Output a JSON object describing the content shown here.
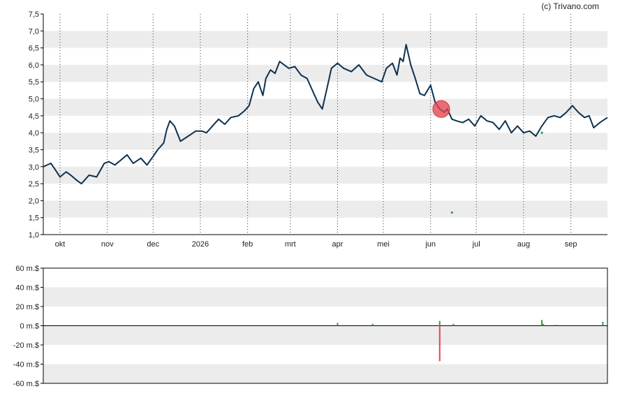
{
  "credit": "(c) Trivano.com",
  "chart_data": [
    {
      "type": "line",
      "title": "",
      "xlabel": "",
      "ylabel": "",
      "ylim": [
        1.0,
        7.5
      ],
      "ytick_labels": [
        "1,0",
        "1,5",
        "2,0",
        "2,5",
        "3,0",
        "3,5",
        "4,0",
        "4,5",
        "5,0",
        "5,5",
        "6,0",
        "6,5",
        "7,0",
        "7,5"
      ],
      "xtick_labels": [
        "okt",
        "nov",
        "dec",
        "2026",
        "feb",
        "mrt",
        "apr",
        "mei",
        "jun",
        "jul",
        "aug",
        "sep"
      ],
      "grid": true,
      "x_range": [
        "2025-09-20",
        "2026-09-25"
      ],
      "xticks": [
        "2025-10-01",
        "2025-11-01",
        "2025-12-01",
        "2026-01-01",
        "2026-02-01",
        "2026-03-01",
        "2026-04-01",
        "2026-05-01",
        "2026-06-01",
        "2026-07-01",
        "2026-08-01",
        "2026-09-01"
      ],
      "series": [
        {
          "color": "#0d3150",
          "x": [
            "2025-09-20",
            "2025-09-25",
            "2025-09-28",
            "2025-10-01",
            "2025-10-05",
            "2025-10-08",
            "2025-10-12",
            "2025-10-15",
            "2025-10-20",
            "2025-10-25",
            "2025-10-30",
            "2025-11-02",
            "2025-11-06",
            "2025-11-10",
            "2025-11-14",
            "2025-11-18",
            "2025-11-23",
            "2025-11-27",
            "2025-12-01",
            "2025-12-04",
            "2025-12-08",
            "2025-12-10",
            "2025-12-12",
            "2025-12-15",
            "2025-12-19",
            "2025-12-24",
            "2025-12-29",
            "2026-01-02",
            "2026-01-05",
            "2026-01-09",
            "2026-01-13",
            "2026-01-17",
            "2026-01-21",
            "2026-01-26",
            "2026-01-30",
            "2026-02-02",
            "2026-02-05",
            "2026-02-08",
            "2026-02-11",
            "2026-02-13",
            "2026-02-16",
            "2026-02-19",
            "2026-02-22",
            "2026-02-25",
            "2026-02-28",
            "2026-03-04",
            "2026-03-08",
            "2026-03-12",
            "2026-03-16",
            "2026-03-19",
            "2026-03-22",
            "2026-03-25",
            "2026-03-28",
            "2026-04-01",
            "2026-04-05",
            "2026-04-10",
            "2026-04-15",
            "2026-04-20",
            "2026-04-25",
            "2026-04-30",
            "2026-05-03",
            "2026-05-07",
            "2026-05-10",
            "2026-05-12",
            "2026-05-14",
            "2026-05-16",
            "2026-05-19",
            "2026-05-22",
            "2026-05-25",
            "2026-05-28",
            "2026-06-01",
            "2026-06-04",
            "2026-06-07",
            "2026-06-10",
            "2026-06-12",
            "2026-06-15",
            "2026-06-18",
            "2026-06-22",
            "2026-06-26",
            "2026-06-30",
            "2026-07-04",
            "2026-07-08",
            "2026-07-12",
            "2026-07-16",
            "2026-07-20",
            "2026-07-24",
            "2026-07-28",
            "2026-08-01",
            "2026-08-05",
            "2026-08-09",
            "2026-08-13",
            "2026-08-17",
            "2026-08-21",
            "2026-08-25",
            "2026-08-29",
            "2026-09-02",
            "2026-09-06",
            "2026-09-10",
            "2026-09-13",
            "2026-09-16",
            "2026-09-20",
            "2026-09-25"
          ],
          "values": [
            3.0,
            3.1,
            2.9,
            2.7,
            2.85,
            2.75,
            2.6,
            2.5,
            2.75,
            2.7,
            3.1,
            3.15,
            3.05,
            3.2,
            3.35,
            3.1,
            3.25,
            3.05,
            3.3,
            3.5,
            3.7,
            4.1,
            4.35,
            4.2,
            3.75,
            3.9,
            4.05,
            4.05,
            4.0,
            4.2,
            4.4,
            4.25,
            4.45,
            4.5,
            4.65,
            4.8,
            5.3,
            5.5,
            5.1,
            5.6,
            5.85,
            5.75,
            6.1,
            6.0,
            5.9,
            5.95,
            5.7,
            5.6,
            5.2,
            4.9,
            4.7,
            5.3,
            5.9,
            6.05,
            5.9,
            5.8,
            6.0,
            5.7,
            5.6,
            5.5,
            5.9,
            6.05,
            5.7,
            6.2,
            6.1,
            6.6,
            6.0,
            5.6,
            5.15,
            5.1,
            5.4,
            4.9,
            4.7,
            4.6,
            4.7,
            4.4,
            4.35,
            4.3,
            4.4,
            4.2,
            4.5,
            4.35,
            4.3,
            4.1,
            4.35,
            4.0,
            4.2,
            4.0,
            4.05,
            3.9,
            4.2,
            4.45,
            4.5,
            4.45,
            4.6,
            4.8,
            4.6,
            4.45,
            4.5,
            4.15,
            4.3,
            4.45
          ]
        }
      ],
      "marker": {
        "x": "2026-06-08",
        "y": 4.7,
        "color": "#e8414e"
      },
      "dots": [
        {
          "x": "2026-06-15",
          "y": 1.65,
          "color": "#2e9b48"
        },
        {
          "x": "2026-08-13",
          "y": 4.0,
          "color": "#2e9b48"
        }
      ]
    },
    {
      "type": "bar",
      "title": "",
      "xlabel": "",
      "ylabel": "",
      "unit": "m.$",
      "ylim": [
        -60,
        60
      ],
      "ytick_labels": [
        "-60 m.$",
        "-40 m.$",
        "-20 m.$",
        "0 m.$",
        "20 m.$",
        "40 m.$",
        "60 m.$"
      ],
      "grid": true,
      "x_range": [
        "2025-09-20",
        "2026-09-25"
      ],
      "bars": [
        {
          "x": "2026-04-01",
          "value": 3,
          "color": "#2e9b48"
        },
        {
          "x": "2026-04-24",
          "value": 2,
          "color": "#2e9b48"
        },
        {
          "x": "2026-06-07",
          "value": 5,
          "color": "#2e9b48"
        },
        {
          "x": "2026-06-07",
          "value": -37,
          "color": "#e8414e"
        },
        {
          "x": "2026-06-16",
          "value": 2,
          "color": "#2e9b48"
        },
        {
          "x": "2026-08-13",
          "value": 6,
          "color": "#2e9b48"
        },
        {
          "x": "2026-08-14",
          "value": 2,
          "color": "#2e9b48"
        },
        {
          "x": "2026-08-22",
          "value": 1,
          "color": "#2e9b48"
        },
        {
          "x": "2026-09-22",
          "value": 4,
          "color": "#2e9b48"
        }
      ]
    }
  ]
}
